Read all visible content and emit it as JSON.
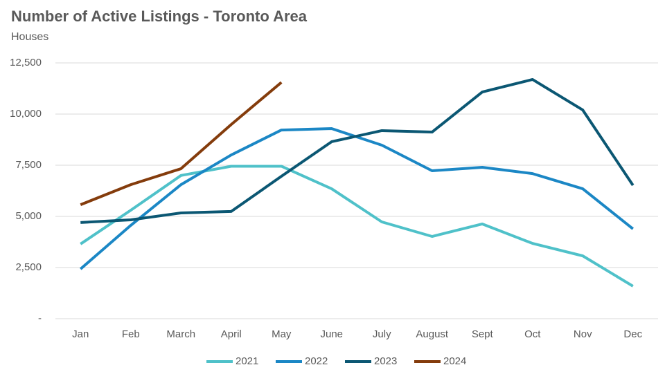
{
  "chart_data": {
    "type": "line",
    "title": "Number of Active Listings - Toronto Area",
    "subtitle": "Houses",
    "categories": [
      "Jan",
      "Feb",
      "March",
      "April",
      "May",
      "June",
      "July",
      "August",
      "Sept",
      "Oct",
      "Nov",
      "Dec"
    ],
    "series": [
      {
        "name": "2021",
        "color": "#4fc1c9",
        "values": [
          3650,
          5300,
          7000,
          7450,
          7450,
          6350,
          4730,
          4020,
          4630,
          3680,
          3070,
          1590
        ]
      },
      {
        "name": "2022",
        "color": "#1b87c5",
        "values": [
          2430,
          4560,
          6550,
          8000,
          9220,
          9290,
          8480,
          7230,
          7400,
          7090,
          6350,
          4390
        ]
      },
      {
        "name": "2023",
        "color": "#0b5773",
        "values": [
          4700,
          4830,
          5170,
          5240,
          6960,
          8650,
          9190,
          9120,
          11080,
          11690,
          10200,
          6520
        ]
      },
      {
        "name": "2024",
        "color": "#843c0c",
        "values": [
          5570,
          6550,
          7330,
          9490,
          11550,
          null,
          null,
          null,
          null,
          null,
          null,
          null
        ]
      }
    ],
    "ylim": [
      0,
      12500
    ],
    "yticks": [
      {
        "value": 0,
        "label": "-"
      },
      {
        "value": 2500,
        "label": "2,500"
      },
      {
        "value": 5000,
        "label": "5,000"
      },
      {
        "value": 7500,
        "label": "7,500"
      },
      {
        "value": 10000,
        "label": "10,000"
      },
      {
        "value": 12500,
        "label": "12,500"
      }
    ],
    "grid": true,
    "legend": "bottom"
  }
}
